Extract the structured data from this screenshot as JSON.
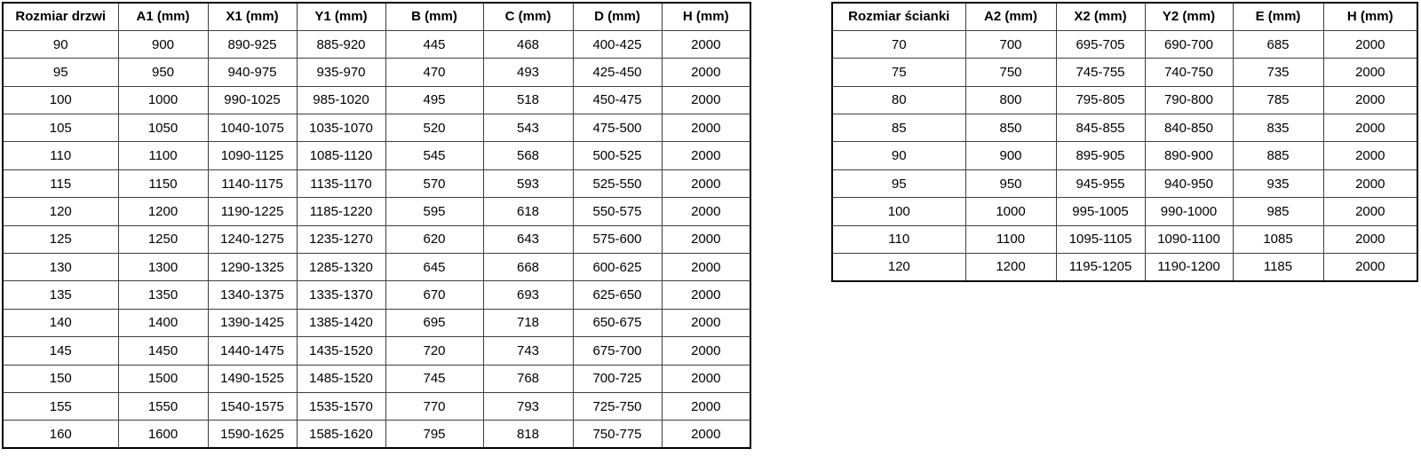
{
  "colors": {
    "background": "#ffffff",
    "text": "#000000",
    "border_outer": "#000000",
    "border_inner": "#3f3f3f"
  },
  "tables": [
    {
      "name": "door-size-table",
      "headers": [
        "Rozmiar drzwi",
        "A1 (mm)",
        "X1 (mm)",
        "Y1 (mm)",
        "B (mm)",
        "C (mm)",
        "D (mm)",
        "H (mm)"
      ],
      "rows": [
        [
          "90",
          "900",
          "890-925",
          "885-920",
          "445",
          "468",
          "400-425",
          "2000"
        ],
        [
          "95",
          "950",
          "940-975",
          "935-970",
          "470",
          "493",
          "425-450",
          "2000"
        ],
        [
          "100",
          "1000",
          "990-1025",
          "985-1020",
          "495",
          "518",
          "450-475",
          "2000"
        ],
        [
          "105",
          "1050",
          "1040-1075",
          "1035-1070",
          "520",
          "543",
          "475-500",
          "2000"
        ],
        [
          "110",
          "1100",
          "1090-1125",
          "1085-1120",
          "545",
          "568",
          "500-525",
          "2000"
        ],
        [
          "115",
          "1150",
          "1140-1175",
          "1135-1170",
          "570",
          "593",
          "525-550",
          "2000"
        ],
        [
          "120",
          "1200",
          "1190-1225",
          "1185-1220",
          "595",
          "618",
          "550-575",
          "2000"
        ],
        [
          "125",
          "1250",
          "1240-1275",
          "1235-1270",
          "620",
          "643",
          "575-600",
          "2000"
        ],
        [
          "130",
          "1300",
          "1290-1325",
          "1285-1320",
          "645",
          "668",
          "600-625",
          "2000"
        ],
        [
          "135",
          "1350",
          "1340-1375",
          "1335-1370",
          "670",
          "693",
          "625-650",
          "2000"
        ],
        [
          "140",
          "1400",
          "1390-1425",
          "1385-1420",
          "695",
          "718",
          "650-675",
          "2000"
        ],
        [
          "145",
          "1450",
          "1440-1475",
          "1435-1520",
          "720",
          "743",
          "675-700",
          "2000"
        ],
        [
          "150",
          "1500",
          "1490-1525",
          "1485-1520",
          "745",
          "768",
          "700-725",
          "2000"
        ],
        [
          "155",
          "1550",
          "1540-1575",
          "1535-1570",
          "770",
          "793",
          "725-750",
          "2000"
        ],
        [
          "160",
          "1600",
          "1590-1625",
          "1585-1620",
          "795",
          "818",
          "750-775",
          "2000"
        ]
      ]
    },
    {
      "name": "wall-size-table",
      "headers": [
        "Rozmiar ścianki",
        "A2 (mm)",
        "X2 (mm)",
        "Y2 (mm)",
        "E (mm)",
        "H (mm)"
      ],
      "rows": [
        [
          "70",
          "700",
          "695-705",
          "690-700",
          "685",
          "2000"
        ],
        [
          "75",
          "750",
          "745-755",
          "740-750",
          "735",
          "2000"
        ],
        [
          "80",
          "800",
          "795-805",
          "790-800",
          "785",
          "2000"
        ],
        [
          "85",
          "850",
          "845-855",
          "840-850",
          "835",
          "2000"
        ],
        [
          "90",
          "900",
          "895-905",
          "890-900",
          "885",
          "2000"
        ],
        [
          "95",
          "950",
          "945-955",
          "940-950",
          "935",
          "2000"
        ],
        [
          "100",
          "1000",
          "995-1005",
          "990-1000",
          "985",
          "2000"
        ],
        [
          "110",
          "1100",
          "1095-1105",
          "1090-1100",
          "1085",
          "2000"
        ],
        [
          "120",
          "1200",
          "1195-1205",
          "1190-1200",
          "1185",
          "2000"
        ]
      ]
    }
  ]
}
